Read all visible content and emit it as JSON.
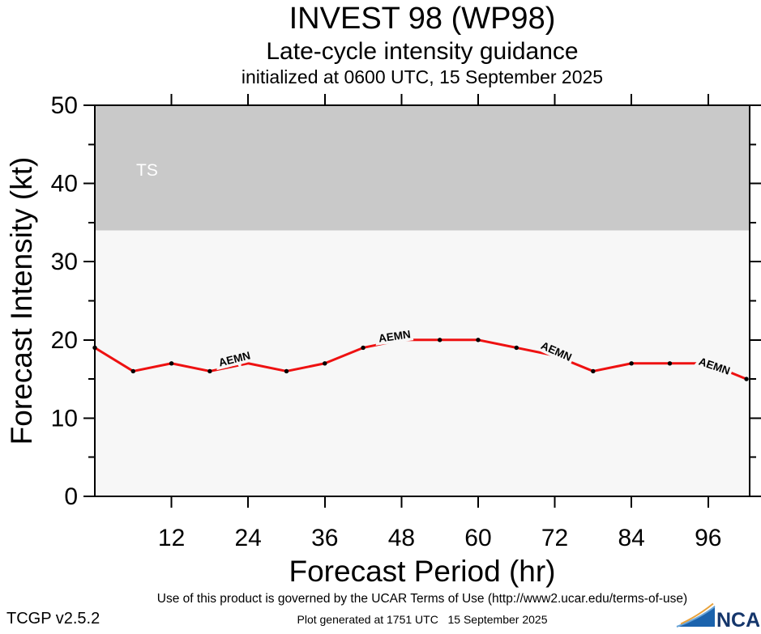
{
  "header": {
    "title": "INVEST 98 (WP98)",
    "subtitle": "Late-cycle intensity guidance",
    "init_line": "initialized at 0600 UTC, 15 September 2025"
  },
  "chart_data": {
    "type": "line",
    "title": "INVEST 98 (WP98) late-cycle intensity guidance",
    "xlabel": "Forecast Period (hr)",
    "ylabel": "Forecast Intensity (kt)",
    "xlim": [
      0,
      102.5
    ],
    "ylim": [
      0,
      50
    ],
    "x_ticks": [
      12,
      24,
      36,
      48,
      60,
      72,
      84,
      96
    ],
    "y_ticks": [
      0,
      10,
      20,
      30,
      40,
      50
    ],
    "y_minor_ticks": [
      5,
      15,
      25,
      35,
      45
    ],
    "grid": false,
    "plot_bg": "#f7f7f7",
    "frame_color": "#000000",
    "zones": [
      {
        "label": "TS",
        "from": 34,
        "to": 50,
        "color": "#c9c9c9",
        "label_color": "#ffffff"
      }
    ],
    "series": [
      {
        "name": "AEMN",
        "color": "#ee1111",
        "x": [
          0,
          6,
          12,
          18,
          24,
          30,
          36,
          42,
          48,
          54,
          60,
          66,
          72,
          78,
          84,
          90,
          96,
          102
        ],
        "values": [
          19,
          16,
          17,
          16,
          17,
          16,
          17,
          19,
          20,
          20,
          20,
          19,
          18,
          16,
          17,
          17,
          17,
          15
        ]
      }
    ],
    "inline_labels": [
      {
        "text": "AEMN",
        "hr": 22.0,
        "kt": 17.1,
        "angle": -14
      },
      {
        "text": "AEMN",
        "hr": 47.0,
        "kt": 20.0,
        "angle": -8
      },
      {
        "text": "AEMN",
        "hr": 72.0,
        "kt": 18.1,
        "angle": 24
      },
      {
        "text": "AEMN",
        "hr": 96.8,
        "kt": 16.2,
        "angle": 19
      }
    ],
    "hidden_dot_hours": [
      24,
      48,
      72,
      96
    ],
    "legend_position": "none"
  },
  "footer": {
    "terms": "Use of this product is governed by the UCAR Terms of Use (http://www2.ucar.edu/terms-of-use)",
    "app_version": "TCGP v2.5.2",
    "generated": "Plot generated at 1751 UTC   15 September 2025",
    "logo_text": "NCAR",
    "logo_colors": {
      "swoosh": "#1b63ad",
      "swoosh_edge": "#6aa5d8",
      "arc": "#e8a23c",
      "text": "#15366b"
    }
  }
}
